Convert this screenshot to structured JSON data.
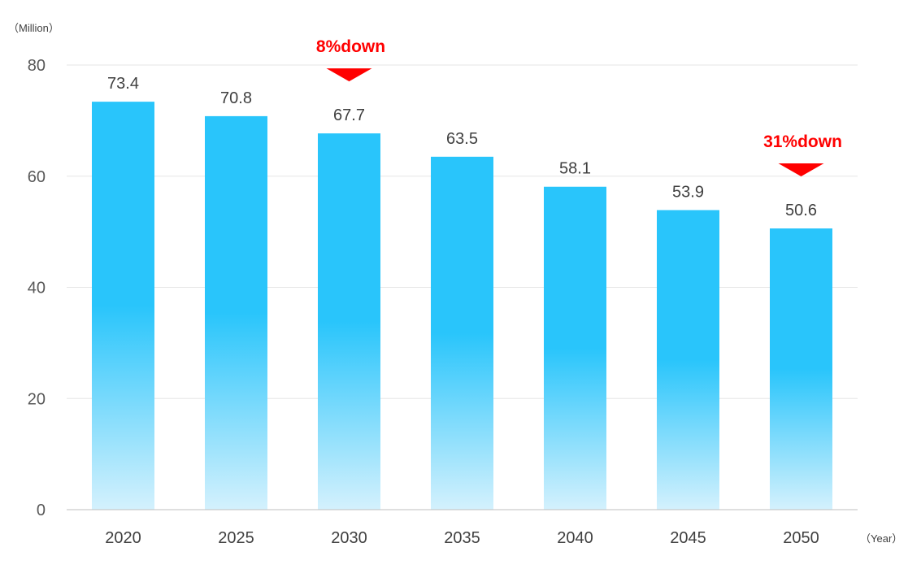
{
  "chart_data": {
    "type": "bar",
    "categories": [
      "2020",
      "2025",
      "2030",
      "2035",
      "2040",
      "2045",
      "2050"
    ],
    "values": [
      73.4,
      70.8,
      67.7,
      63.5,
      58.1,
      53.9,
      50.6
    ],
    "data_labels": [
      "73.4",
      "70.8",
      "67.7",
      "63.5",
      "58.1",
      "53.9",
      "50.6"
    ],
    "title": "",
    "ylabel": "（Million）",
    "xlabel": "（Year）",
    "ylim": [
      0,
      80
    ],
    "yticks": [
      "0",
      "20",
      "40",
      "60",
      "80"
    ],
    "grid": true,
    "bar_color": "#29c5fb",
    "bar_color_fade": "#d4f1fd",
    "annotation_color": "#ff0000",
    "annotations": [
      {
        "category": "2030",
        "label": "8%down"
      },
      {
        "category": "2050",
        "label": "31%down"
      }
    ]
  }
}
